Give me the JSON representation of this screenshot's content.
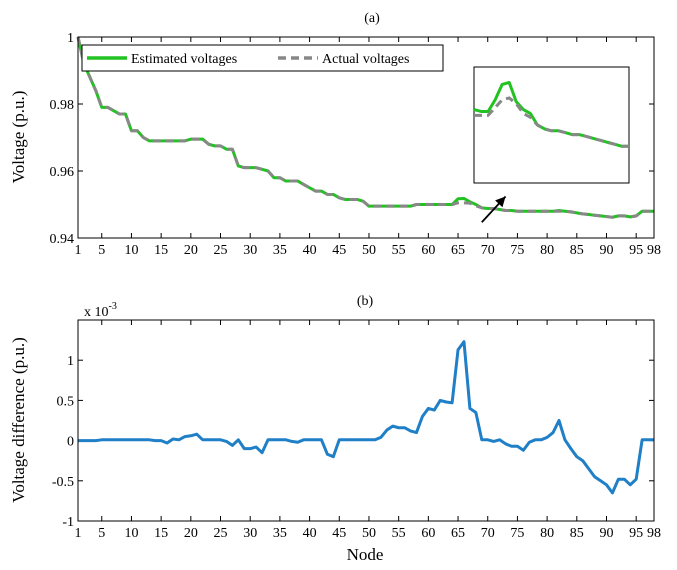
{
  "chart_data": [
    {
      "type": "line",
      "title": "(a)",
      "xlabel": "",
      "ylabel": "Voltage (p.u.)",
      "xlim": [
        1,
        98
      ],
      "ylim": [
        0.94,
        1.0
      ],
      "xticks": [
        1,
        5,
        10,
        15,
        20,
        25,
        30,
        35,
        40,
        45,
        50,
        55,
        60,
        65,
        70,
        75,
        80,
        85,
        90,
        95,
        98
      ],
      "xtick_labels": [
        "1",
        "5",
        "10",
        "15",
        "20",
        "25",
        "30",
        "35",
        "40",
        "45",
        "50",
        "55",
        "60",
        "65",
        "70",
        "75",
        "80",
        "85",
        "90",
        "95",
        "98"
      ],
      "yticks": [
        0.94,
        0.96,
        0.98,
        1.0
      ],
      "ytick_labels": [
        "0.94",
        "0.96",
        "0.98",
        "1"
      ],
      "grid": false,
      "legend_position": "top",
      "colors": {
        "estimated": "#22c222",
        "actual": "#888888"
      },
      "series": [
        {
          "name": "Estimated voltages",
          "style": "solid",
          "x": [
            1,
            2,
            3,
            4,
            5,
            6,
            7,
            8,
            9,
            10,
            11,
            12,
            13,
            14,
            15,
            16,
            17,
            18,
            19,
            20,
            21,
            22,
            23,
            24,
            25,
            26,
            27,
            28,
            29,
            30,
            31,
            32,
            33,
            34,
            35,
            36,
            37,
            38,
            39,
            40,
            41,
            42,
            43,
            44,
            45,
            46,
            47,
            48,
            49,
            50,
            51,
            52,
            53,
            54,
            55,
            56,
            57,
            58,
            59,
            60,
            61,
            62,
            63,
            64,
            65,
            66,
            67,
            68,
            69,
            70,
            71,
            72,
            73,
            74,
            75,
            76,
            77,
            78,
            79,
            80,
            81,
            82,
            83,
            84,
            85,
            86,
            87,
            88,
            89,
            90,
            91,
            92,
            93,
            94,
            95,
            96,
            97,
            98
          ],
          "values": [
            1.0,
            0.992,
            0.988,
            0.984,
            0.979,
            0.979,
            0.978,
            0.977,
            0.977,
            0.972,
            0.972,
            0.97,
            0.969,
            0.969,
            0.969,
            0.969,
            0.969,
            0.969,
            0.969,
            0.9695,
            0.9695,
            0.9695,
            0.968,
            0.9675,
            0.9675,
            0.9665,
            0.9665,
            0.9615,
            0.961,
            0.961,
            0.961,
            0.9605,
            0.96,
            0.958,
            0.958,
            0.957,
            0.957,
            0.957,
            0.956,
            0.955,
            0.954,
            0.954,
            0.953,
            0.953,
            0.952,
            0.9515,
            0.9515,
            0.9515,
            0.951,
            0.9495,
            0.9495,
            0.9495,
            0.9495,
            0.9495,
            0.9495,
            0.9495,
            0.9495,
            0.95,
            0.95,
            0.95,
            0.95,
            0.95,
            0.95,
            0.95,
            0.9517,
            0.9518,
            0.9508,
            0.95,
            0.949,
            0.9488,
            0.9488,
            0.9485,
            0.9482,
            0.9482,
            0.948,
            0.948,
            0.948,
            0.948,
            0.948,
            0.948,
            0.948,
            0.9482,
            0.948,
            0.9478,
            0.9475,
            0.9472,
            0.947,
            0.9468,
            0.9466,
            0.9464,
            0.9462,
            0.9466,
            0.9466,
            0.9463,
            0.9466,
            0.948,
            0.948,
            0.948
          ]
        },
        {
          "name": "Actual voltages",
          "style": "dashed",
          "x": [
            1,
            2,
            3,
            4,
            5,
            6,
            7,
            8,
            9,
            10,
            11,
            12,
            13,
            14,
            15,
            16,
            17,
            18,
            19,
            20,
            21,
            22,
            23,
            24,
            25,
            26,
            27,
            28,
            29,
            30,
            31,
            32,
            33,
            34,
            35,
            36,
            37,
            38,
            39,
            40,
            41,
            42,
            43,
            44,
            45,
            46,
            47,
            48,
            49,
            50,
            51,
            52,
            53,
            54,
            55,
            56,
            57,
            58,
            59,
            60,
            61,
            62,
            63,
            64,
            65,
            66,
            67,
            68,
            69,
            70,
            71,
            72,
            73,
            74,
            75,
            76,
            77,
            78,
            79,
            80,
            81,
            82,
            83,
            84,
            85,
            86,
            87,
            88,
            89,
            90,
            91,
            92,
            93,
            94,
            95,
            96,
            97,
            98
          ],
          "values": [
            1.0,
            0.992,
            0.988,
            0.984,
            0.979,
            0.979,
            0.978,
            0.977,
            0.977,
            0.972,
            0.972,
            0.97,
            0.969,
            0.969,
            0.969,
            0.969,
            0.969,
            0.969,
            0.969,
            0.9695,
            0.9695,
            0.9695,
            0.968,
            0.9675,
            0.9675,
            0.9665,
            0.9665,
            0.9615,
            0.961,
            0.961,
            0.961,
            0.9605,
            0.96,
            0.958,
            0.958,
            0.957,
            0.957,
            0.957,
            0.956,
            0.955,
            0.954,
            0.954,
            0.953,
            0.953,
            0.952,
            0.9515,
            0.9515,
            0.9515,
            0.951,
            0.9495,
            0.9495,
            0.9495,
            0.9495,
            0.9495,
            0.9495,
            0.9495,
            0.9495,
            0.95,
            0.95,
            0.95,
            0.95,
            0.95,
            0.95,
            0.95,
            0.9505,
            0.9505,
            0.9504,
            0.9496,
            0.949,
            0.9488,
            0.9488,
            0.9485,
            0.9482,
            0.9482,
            0.948,
            0.948,
            0.948,
            0.948,
            0.948,
            0.948,
            0.948,
            0.948,
            0.948,
            0.9478,
            0.9475,
            0.9472,
            0.947,
            0.9468,
            0.9466,
            0.9464,
            0.9462,
            0.9466,
            0.9466,
            0.9463,
            0.9466,
            0.948,
            0.948,
            0.948
          ]
        }
      ],
      "inset": {
        "x": [
          70,
          71,
          72,
          73,
          74,
          75,
          76,
          77,
          78,
          79,
          80,
          81,
          82,
          83,
          84,
          85,
          86,
          87,
          88,
          89,
          90,
          91,
          92
        ],
        "estimated": [
          0.9543,
          0.9542,
          0.9542,
          0.9548,
          0.9556,
          0.9557,
          0.9547,
          0.9543,
          0.9541,
          0.9535,
          0.9533,
          0.9532,
          0.9532,
          0.9531,
          0.953,
          0.953,
          0.9529,
          0.9528,
          0.9527,
          0.9526,
          0.9525,
          0.9524,
          0.9524
        ],
        "actual": [
          0.954,
          0.954,
          0.954,
          0.9544,
          0.9548,
          0.9549,
          0.9546,
          0.9541,
          0.9539,
          0.9535,
          0.9533,
          0.9532,
          0.9532,
          0.9531,
          0.953,
          0.953,
          0.9529,
          0.9528,
          0.9527,
          0.9526,
          0.9525,
          0.9524,
          0.9524
        ],
        "ylim": [
          0.9505,
          0.9565
        ],
        "pointer": {
          "from_x": 69,
          "from_y": 0.9447,
          "to_x": 73,
          "to_y": 0.9524
        }
      }
    },
    {
      "type": "line",
      "title": "(b)",
      "xlabel": "Node",
      "ylabel": "Voltage difference (p.u.)",
      "multiplier": "x 10",
      "multiplier_exponent": "-3",
      "xlim": [
        1,
        98
      ],
      "ylim": [
        -1,
        1.5
      ],
      "xticks": [
        1,
        5,
        10,
        15,
        20,
        25,
        30,
        35,
        40,
        45,
        50,
        55,
        60,
        65,
        70,
        75,
        80,
        85,
        90,
        95,
        98
      ],
      "xtick_labels": [
        "1",
        "5",
        "10",
        "15",
        "20",
        "25",
        "30",
        "35",
        "40",
        "45",
        "50",
        "55",
        "60",
        "65",
        "70",
        "75",
        "80",
        "85",
        "90",
        "95",
        "98"
      ],
      "yticks": [
        -1,
        -0.5,
        0,
        0.5,
        1
      ],
      "ytick_labels": [
        "-1",
        "-0.5",
        "0",
        "0.5",
        "1"
      ],
      "grid": false,
      "colors": {
        "line": "#1f7fc7"
      },
      "series": [
        {
          "x": [
            1,
            2,
            3,
            4,
            5,
            6,
            7,
            8,
            9,
            10,
            11,
            12,
            13,
            14,
            15,
            16,
            17,
            18,
            19,
            20,
            21,
            22,
            23,
            24,
            25,
            26,
            27,
            28,
            29,
            30,
            31,
            32,
            33,
            34,
            35,
            36,
            37,
            38,
            39,
            40,
            41,
            42,
            43,
            44,
            45,
            46,
            47,
            48,
            49,
            50,
            51,
            52,
            53,
            54,
            55,
            56,
            57,
            58,
            59,
            60,
            61,
            62,
            63,
            64,
            65,
            66,
            67,
            68,
            69,
            70,
            71,
            72,
            73,
            74,
            75,
            76,
            77,
            78,
            79,
            80,
            81,
            82,
            83,
            84,
            85,
            86,
            87,
            88,
            89,
            90,
            91,
            92,
            93,
            94,
            95,
            96,
            97,
            98
          ],
          "values": [
            0,
            0,
            0,
            0,
            0.01,
            0.01,
            0.01,
            0.01,
            0.01,
            0.01,
            0.01,
            0.01,
            0.01,
            0,
            0,
            -0.03,
            0.02,
            0.01,
            0.05,
            0.06,
            0.08,
            0.01,
            0.01,
            0.01,
            0.01,
            -0.01,
            -0.06,
            0.01,
            -0.1,
            -0.1,
            -0.08,
            -0.15,
            0.01,
            0.01,
            0.01,
            0.01,
            -0.01,
            -0.02,
            0.01,
            0.01,
            0.01,
            0.01,
            -0.17,
            -0.2,
            0.01,
            0.01,
            0.01,
            0.01,
            0.01,
            0.01,
            0.01,
            0.04,
            0.13,
            0.18,
            0.16,
            0.16,
            0.12,
            0.1,
            0.3,
            0.4,
            0.38,
            0.5,
            0.48,
            0.47,
            1.13,
            1.23,
            0.4,
            0.35,
            0.01,
            0.01,
            -0.01,
            0.01,
            -0.04,
            -0.07,
            -0.07,
            -0.12,
            -0.02,
            0.01,
            0.01,
            0.04,
            0.1,
            0.25,
            0.01,
            -0.1,
            -0.2,
            -0.25,
            -0.35,
            -0.45,
            -0.5,
            -0.55,
            -0.65,
            -0.48,
            -0.48,
            -0.55,
            -0.48,
            0.01,
            0.01,
            0.01
          ]
        }
      ]
    }
  ]
}
